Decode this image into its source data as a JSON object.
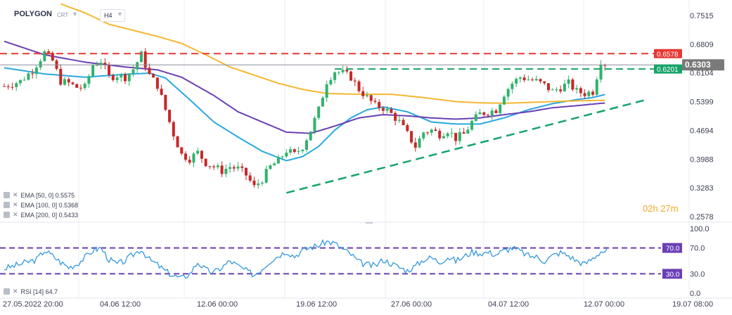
{
  "header": {
    "symbol": "POLYGON",
    "type": "CRT",
    "timeframe": "H4"
  },
  "indicators": {
    "ema": [
      {
        "label": "EMA [50, 0] 0.5575",
        "color": "#29a8e0"
      },
      {
        "label": "EMA [100, 0] 0.5368",
        "color": "#6a3fb5"
      },
      {
        "label": "EMA [200, 0] 0.5433",
        "color": "#f5b731"
      }
    ],
    "rsi_label": "RSI [14] 64.7"
  },
  "timer": {
    "hours": "02",
    "h": "h",
    "minutes": "27",
    "m": "m"
  },
  "colors": {
    "bull": "#2fb36b",
    "bear": "#c62828",
    "resistance": "#e53935",
    "trend": "#17a46a",
    "rsi_line": "#3498db",
    "rsi_levels": "#6a3fb5",
    "timer": "#f5a623"
  },
  "chart_data": {
    "type": "candlestick",
    "price_axis": {
      "ticks": [
        "0.7515",
        "0.6809",
        "0.6104",
        "0.5399",
        "0.4694",
        "0.3988",
        "0.3283",
        "0.2578"
      ],
      "ylim": [
        0.2578,
        0.7515
      ]
    },
    "time_axis": [
      "27.05.2022 20:00",
      "04.06 12:00",
      "12.06 00:00",
      "19.06 12:00",
      "27.06 00:00",
      "04.07 12:00",
      "12.07 00:00",
      "19.07 08:00"
    ],
    "price_badges": [
      {
        "value": "0.6578",
        "color": "#e53935",
        "style": "resistance"
      },
      {
        "value": "0.6303",
        "color": "#7a7a7a",
        "style": "current"
      },
      {
        "value": "0.6201",
        "color": "#17a46a",
        "style": "support"
      }
    ],
    "levels": {
      "resistance": 0.6578,
      "current": 0.6303,
      "range_top": 0.6201
    },
    "trendline": {
      "from": [
        "19.06 00:00",
        0.316
      ],
      "to": [
        "17.07 00:00",
        0.544
      ]
    },
    "price_path": [
      [
        0,
        0.578
      ],
      [
        4,
        0.59
      ],
      [
        7,
        0.617
      ],
      [
        10,
        0.66
      ],
      [
        12,
        0.64
      ],
      [
        14,
        0.59
      ],
      [
        16,
        0.585
      ],
      [
        18,
        0.575
      ],
      [
        20,
        0.575
      ],
      [
        22,
        0.63
      ],
      [
        24,
        0.64
      ],
      [
        26,
        0.6
      ],
      [
        28,
        0.605
      ],
      [
        30,
        0.6
      ],
      [
        32,
        0.62
      ],
      [
        34,
        0.655
      ],
      [
        36,
        0.605
      ],
      [
        38,
        0.58
      ],
      [
        40,
        0.52
      ],
      [
        42,
        0.46
      ],
      [
        44,
        0.41
      ],
      [
        46,
        0.4
      ],
      [
        48,
        0.415
      ],
      [
        50,
        0.39
      ],
      [
        52,
        0.38
      ],
      [
        54,
        0.37
      ],
      [
        56,
        0.38
      ],
      [
        58,
        0.375
      ],
      [
        60,
        0.36
      ],
      [
        62,
        0.33
      ],
      [
        64,
        0.35
      ],
      [
        66,
        0.38
      ],
      [
        68,
        0.395
      ],
      [
        70,
        0.42
      ],
      [
        72,
        0.41
      ],
      [
        74,
        0.43
      ],
      [
        76,
        0.47
      ],
      [
        78,
        0.52
      ],
      [
        80,
        0.59
      ],
      [
        82,
        0.615
      ],
      [
        84,
        0.61
      ],
      [
        86,
        0.6
      ],
      [
        88,
        0.57
      ],
      [
        90,
        0.55
      ],
      [
        92,
        0.53
      ],
      [
        94,
        0.525
      ],
      [
        96,
        0.51
      ],
      [
        98,
        0.49
      ],
      [
        100,
        0.46
      ],
      [
        102,
        0.43
      ],
      [
        104,
        0.465
      ],
      [
        106,
        0.47
      ],
      [
        108,
        0.46
      ],
      [
        110,
        0.47
      ],
      [
        112,
        0.45
      ],
      [
        114,
        0.46
      ],
      [
        116,
        0.49
      ],
      [
        118,
        0.51
      ],
      [
        120,
        0.515
      ],
      [
        122,
        0.52
      ],
      [
        124,
        0.56
      ],
      [
        126,
        0.585
      ],
      [
        128,
        0.6
      ],
      [
        130,
        0.595
      ],
      [
        132,
        0.59
      ],
      [
        134,
        0.58
      ],
      [
        136,
        0.565
      ],
      [
        138,
        0.575
      ],
      [
        140,
        0.585
      ],
      [
        142,
        0.565
      ],
      [
        144,
        0.56
      ],
      [
        146,
        0.565
      ],
      [
        148,
        0.64
      ],
      [
        149,
        0.633
      ]
    ],
    "ema_series": {
      "ema50": [
        [
          0,
          0.623
        ],
        [
          10,
          0.608
        ],
        [
          20,
          0.6
        ],
        [
          30,
          0.607
        ],
        [
          36,
          0.61
        ],
        [
          40,
          0.598
        ],
        [
          46,
          0.545
        ],
        [
          52,
          0.49
        ],
        [
          58,
          0.453
        ],
        [
          64,
          0.418
        ],
        [
          70,
          0.395
        ],
        [
          74,
          0.405
        ],
        [
          78,
          0.43
        ],
        [
          82,
          0.47
        ],
        [
          86,
          0.5
        ],
        [
          90,
          0.52
        ],
        [
          94,
          0.527
        ],
        [
          100,
          0.515
        ],
        [
          106,
          0.49
        ],
        [
          112,
          0.485
        ],
        [
          118,
          0.485
        ],
        [
          124,
          0.5
        ],
        [
          130,
          0.52
        ],
        [
          136,
          0.535
        ],
        [
          142,
          0.545
        ],
        [
          146,
          0.55
        ],
        [
          149,
          0.5575
        ]
      ],
      "ema100": [
        [
          0,
          0.688
        ],
        [
          10,
          0.655
        ],
        [
          20,
          0.637
        ],
        [
          30,
          0.625
        ],
        [
          38,
          0.618
        ],
        [
          44,
          0.6
        ],
        [
          52,
          0.555
        ],
        [
          58,
          0.515
        ],
        [
          64,
          0.49
        ],
        [
          70,
          0.465
        ],
        [
          76,
          0.462
        ],
        [
          82,
          0.48
        ],
        [
          88,
          0.5
        ],
        [
          94,
          0.508
        ],
        [
          100,
          0.505
        ],
        [
          106,
          0.5
        ],
        [
          112,
          0.497
        ],
        [
          118,
          0.5
        ],
        [
          124,
          0.508
        ],
        [
          130,
          0.515
        ],
        [
          136,
          0.525
        ],
        [
          142,
          0.53
        ],
        [
          149,
          0.5368
        ]
      ],
      "ema200": [
        [
          14,
          0.78
        ],
        [
          20,
          0.758
        ],
        [
          26,
          0.73
        ],
        [
          32,
          0.715
        ],
        [
          38,
          0.7
        ],
        [
          44,
          0.683
        ],
        [
          50,
          0.655
        ],
        [
          56,
          0.625
        ],
        [
          62,
          0.605
        ],
        [
          68,
          0.585
        ],
        [
          74,
          0.57
        ],
        [
          80,
          0.56
        ],
        [
          88,
          0.558
        ],
        [
          96,
          0.558
        ],
        [
          104,
          0.55
        ],
        [
          112,
          0.54
        ],
        [
          118,
          0.537
        ],
        [
          124,
          0.536
        ],
        [
          130,
          0.538
        ],
        [
          136,
          0.54
        ],
        [
          142,
          0.542
        ],
        [
          149,
          0.5433
        ]
      ]
    },
    "rsi": {
      "name": "RSI [14]",
      "last": 64.7,
      "axis_ticks": [
        "100.0",
        "70.0",
        "30.0",
        "0.0"
      ],
      "ylim": [
        0,
        100
      ],
      "levels": [
        {
          "value": 70.0,
          "label": "70.0"
        },
        {
          "value": 30.0,
          "label": "30.0"
        }
      ],
      "path": [
        [
          0,
          38
        ],
        [
          4,
          45
        ],
        [
          8,
          52
        ],
        [
          10,
          66
        ],
        [
          12,
          58
        ],
        [
          14,
          48
        ],
        [
          16,
          40
        ],
        [
          18,
          45
        ],
        [
          20,
          55
        ],
        [
          22,
          66
        ],
        [
          24,
          70
        ],
        [
          26,
          52
        ],
        [
          28,
          45
        ],
        [
          30,
          50
        ],
        [
          32,
          60
        ],
        [
          34,
          68
        ],
        [
          36,
          52
        ],
        [
          38,
          44
        ],
        [
          40,
          34
        ],
        [
          42,
          27
        ],
        [
          44,
          23
        ],
        [
          46,
          30
        ],
        [
          48,
          48
        ],
        [
          50,
          36
        ],
        [
          52,
          32
        ],
        [
          54,
          40
        ],
        [
          56,
          50
        ],
        [
          58,
          42
        ],
        [
          60,
          35
        ],
        [
          62,
          28
        ],
        [
          64,
          38
        ],
        [
          66,
          50
        ],
        [
          68,
          58
        ],
        [
          70,
          65
        ],
        [
          72,
          57
        ],
        [
          74,
          66
        ],
        [
          76,
          71
        ],
        [
          78,
          74
        ],
        [
          80,
          80
        ],
        [
          82,
          77
        ],
        [
          84,
          68
        ],
        [
          86,
          60
        ],
        [
          88,
          48
        ],
        [
          90,
          44
        ],
        [
          92,
          42
        ],
        [
          94,
          52
        ],
        [
          96,
          46
        ],
        [
          98,
          40
        ],
        [
          100,
          35
        ],
        [
          102,
          42
        ],
        [
          104,
          52
        ],
        [
          106,
          55
        ],
        [
          108,
          48
        ],
        [
          110,
          56
        ],
        [
          112,
          50
        ],
        [
          114,
          56
        ],
        [
          116,
          64
        ],
        [
          118,
          62
        ],
        [
          120,
          63
        ],
        [
          122,
          60
        ],
        [
          124,
          66
        ],
        [
          126,
          70
        ],
        [
          128,
          65
        ],
        [
          130,
          58
        ],
        [
          132,
          56
        ],
        [
          134,
          50
        ],
        [
          136,
          58
        ],
        [
          138,
          63
        ],
        [
          140,
          58
        ],
        [
          142,
          50
        ],
        [
          144,
          45
        ],
        [
          146,
          54
        ],
        [
          148,
          64.7
        ],
        [
          149,
          64.7
        ]
      ]
    }
  }
}
